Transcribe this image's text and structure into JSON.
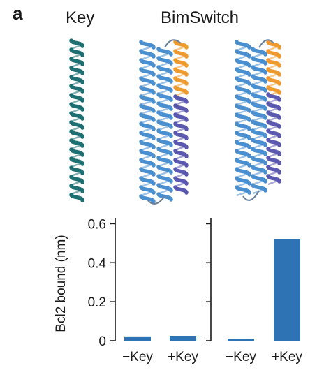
{
  "figure": {
    "panel_label": "a",
    "key_heading": "Key",
    "bimswitch_heading": "BimSwitch"
  },
  "colors": {
    "key_helix": "#1d6f72",
    "scaffold_helix": "#4a8fd0",
    "latch_orange": "#ef9a2f",
    "latch_purple": "#5b58b0",
    "bar": "#2e74b5",
    "axis": "#1a1a1a"
  },
  "icons": [
    "key-helix-icon",
    "bimswitch-off-structure-icon",
    "bimswitch-on-structure-icon"
  ],
  "chart_data": {
    "type": "bar",
    "ylabel": "Bcl2 bound (nm)",
    "ylim": [
      0,
      0.63
    ],
    "yticks": [
      "0",
      "0.2",
      "0.4",
      "0.6"
    ],
    "ytick_values": [
      0,
      0.2,
      0.4,
      0.6
    ],
    "panels": [
      {
        "categories": [
          "−Key",
          "+Key"
        ],
        "values": [
          0.022,
          0.025
        ]
      },
      {
        "categories": [
          "−Key",
          "+Key"
        ],
        "values": [
          0.01,
          0.52
        ]
      }
    ]
  }
}
